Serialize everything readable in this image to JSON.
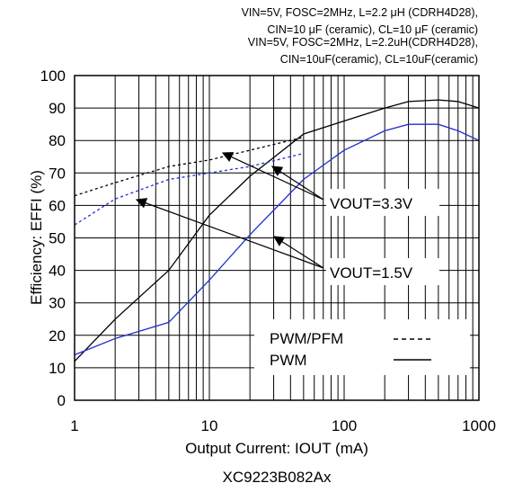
{
  "header": {
    "line1": "VIN=5V, FOSC=2MHz, L=2.2 μH (CDRH4D28),",
    "line2": "CIN=10 μF (ceramic), CL=10 μF (ceramic)",
    "line3": "VIN=5V, FOSC=2MHz, L=2.2uH(CDRH4D28),",
    "line4": "CIN=10uF(ceramic), CL=10uF(ceramic)"
  },
  "footer": {
    "part_number": "XC9223B082Ax"
  },
  "colors": {
    "vout_3_3": "#000000",
    "vout_1_5": "#1f2fd0",
    "grid": "#000000"
  },
  "chart_data": {
    "type": "line",
    "xlabel": "Output Current: IOUT (mA)",
    "ylabel": "Efficiency: EFFI (%)",
    "x_scale": "log",
    "xlim": [
      1,
      1000
    ],
    "ylim": [
      0,
      100
    ],
    "x_ticks": [
      1,
      10,
      100,
      1000
    ],
    "x_tick_labels": [
      "1",
      "10",
      "100",
      "1000"
    ],
    "y_ticks": [
      0,
      10,
      20,
      30,
      40,
      50,
      60,
      70,
      80,
      90,
      100
    ],
    "y_tick_labels": [
      "0",
      "10",
      "20",
      "30",
      "40",
      "50",
      "60",
      "70",
      "80",
      "90",
      "100"
    ],
    "grid": true,
    "legend": {
      "placement": "bottom-right",
      "entries": [
        {
          "label": "PWM/PFM",
          "style": "dashed"
        },
        {
          "label": "PWM",
          "style": "solid"
        }
      ]
    },
    "annotations": [
      "VOUT=3.3V",
      "VOUT=1.5V"
    ],
    "series": [
      {
        "vout": "3.3V",
        "mode": "PWM",
        "style": "solid",
        "color": "#000000",
        "x": [
          1,
          2,
          5,
          10,
          20,
          50,
          100,
          200,
          300,
          500,
          700,
          1000
        ],
        "y": [
          12,
          25,
          40,
          57,
          69,
          82,
          86,
          90,
          92,
          92.5,
          92,
          90
        ]
      },
      {
        "vout": "3.3V",
        "mode": "PWM/PFM",
        "style": "dashed",
        "color": "#000000",
        "x": [
          1,
          2,
          5,
          10,
          20,
          50
        ],
        "y": [
          63,
          67,
          72,
          74,
          77,
          81
        ]
      },
      {
        "vout": "1.5V",
        "mode": "PWM",
        "style": "solid",
        "color": "#1f2fd0",
        "x": [
          1,
          2,
          5,
          10,
          20,
          50,
          100,
          200,
          300,
          500,
          700,
          1000
        ],
        "y": [
          14,
          19,
          24,
          37,
          51,
          68,
          77,
          83,
          85,
          85,
          83,
          80
        ]
      },
      {
        "vout": "1.5V",
        "mode": "PWM/PFM",
        "style": "dashed",
        "color": "#1f2fd0",
        "x": [
          1,
          2,
          5,
          10,
          20,
          50
        ],
        "y": [
          54,
          62,
          68,
          70,
          72,
          76
        ]
      }
    ]
  }
}
